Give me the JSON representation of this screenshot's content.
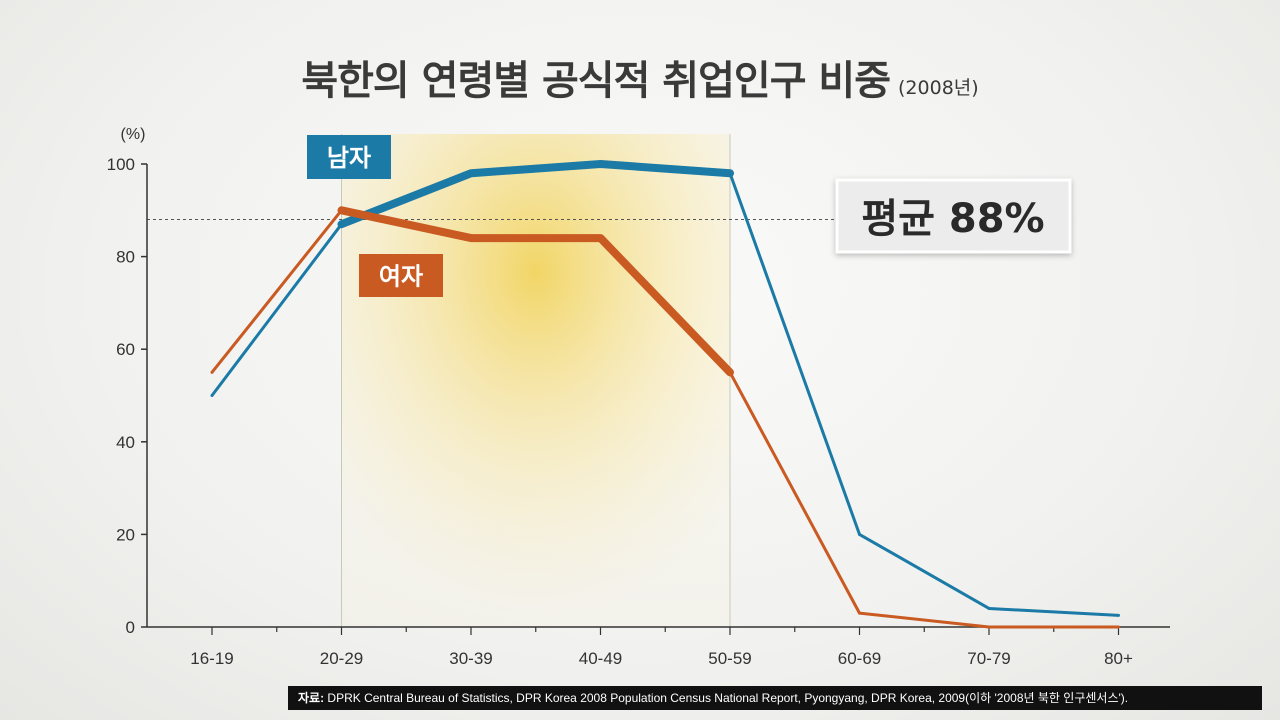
{
  "title": "북한의 연령별 공식적 취업인구 비중",
  "subtitle": "(2008년)",
  "source_label": "자료:",
  "source_text": "DPRK Central Bureau of Statistics, DPR Korea 2008 Population Census National Report, Pyongyang, DPR Korea, 2009(이하 '2008년 북한 인구센서스').",
  "colors": {
    "male": "#1b7aa6",
    "female": "#c95a22",
    "highlight": "#f4d66a"
  },
  "chart_data": {
    "type": "line",
    "ylabel": "(%)",
    "ylim": [
      0,
      100
    ],
    "yticks": [
      0,
      20,
      40,
      60,
      80,
      100
    ],
    "categories": [
      "16-19",
      "20-29",
      "30-39",
      "40-49",
      "50-59",
      "60-69",
      "70-79",
      "80+"
    ],
    "series": [
      {
        "name": "남자",
        "values": [
          50,
          87,
          98,
          100,
          98,
          20,
          4,
          2.5
        ]
      },
      {
        "name": "여자",
        "values": [
          55,
          90,
          84,
          84,
          55,
          3,
          0,
          0
        ]
      }
    ],
    "average": {
      "label": "평균 88%",
      "value": 88
    },
    "highlight_range": [
      "20-29",
      "50-59"
    ]
  }
}
